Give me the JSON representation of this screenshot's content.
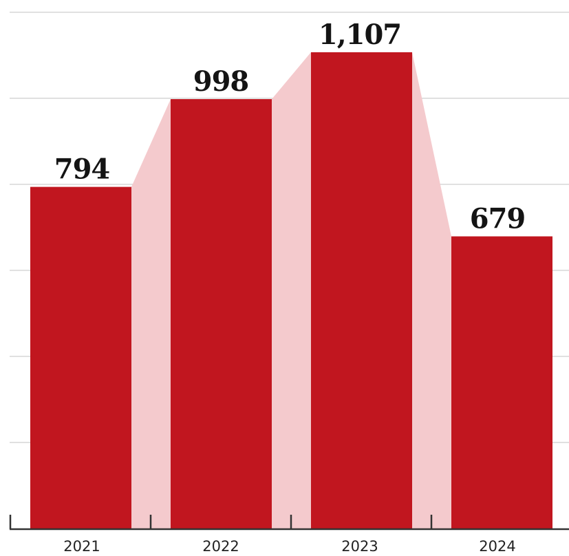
{
  "chart_data": {
    "type": "bar",
    "categories": [
      "2021",
      "2022",
      "2023",
      "2024"
    ],
    "values": [
      794,
      998,
      1107,
      679
    ],
    "data_labels": [
      "794",
      "998",
      "1,107",
      "679"
    ],
    "title": "",
    "xlabel": "",
    "ylabel": "",
    "ylim": [
      0,
      1200
    ],
    "grid": true,
    "legend": "none",
    "bar_connectors": true
  },
  "colors": {
    "bar": "#c1161f",
    "connector": "#f4cacd",
    "grid": "#d6d6d6",
    "axis": "#333333",
    "label": "#141414",
    "tick_label": "#222222"
  }
}
